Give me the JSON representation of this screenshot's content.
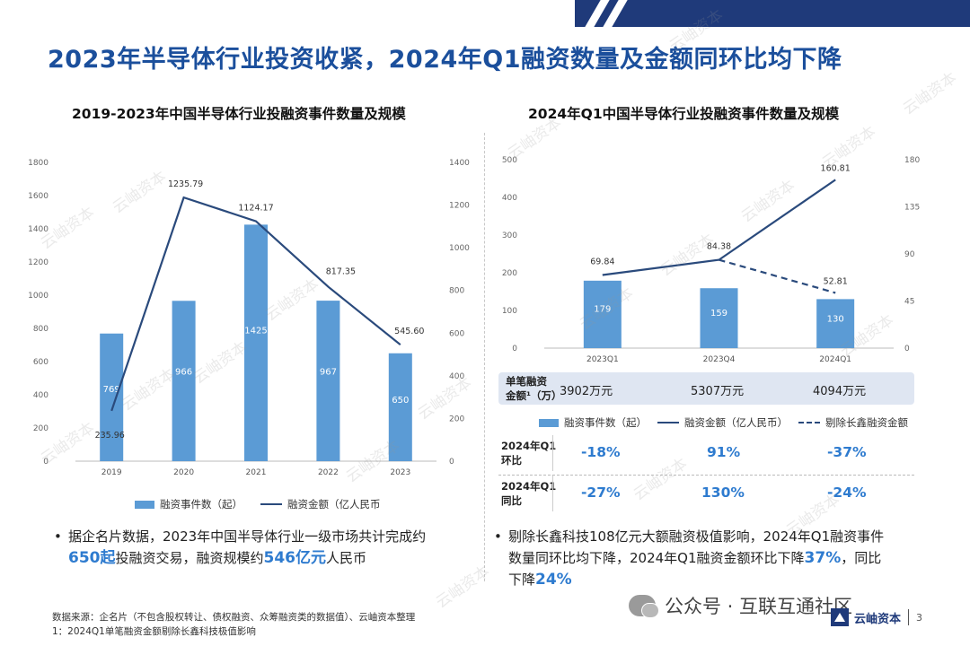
{
  "page_title": "2023年半导体行业投资收紧，2024年Q1融资数量及金额同环比均下降",
  "watermark": "云岫资本",
  "left_chart": {
    "title": "2019-2023年中国半导体行业投融资事件数量及规模",
    "legend": {
      "bar": "融资事件数（起）",
      "line": "融资金额（亿人民币"
    }
  },
  "right_chart": {
    "title": "2024年Q1中国半导体行业投融资事件数量及规模",
    "legend": {
      "bar": "融资事件数（起）",
      "line": "融资金额（亿人民币）",
      "dash": "剔除长鑫融资金额"
    }
  },
  "chart_data": [
    {
      "type": "bar+line",
      "title": "2019-2023年中国半导体行业投融资事件数量及规模",
      "categories": [
        "2019",
        "2020",
        "2021",
        "2022",
        "2023"
      ],
      "series": [
        {
          "name": "融资事件数（起）",
          "type": "bar",
          "axis": "left",
          "values": [
            769,
            966,
            1425,
            967,
            650
          ]
        },
        {
          "name": "融资金额（亿人民币",
          "type": "line",
          "axis": "right",
          "values": [
            235.96,
            1235.79,
            1124.17,
            817.35,
            545.6
          ],
          "labels": [
            "235.96",
            "1235.79",
            "1124.17",
            "817.35",
            "545.60"
          ]
        }
      ],
      "bar_labels": [
        "769",
        "966",
        "1425",
        "967",
        "650"
      ],
      "y_left": {
        "range": [
          0,
          1800
        ],
        "ticks": [
          "0",
          "200",
          "400",
          "600",
          "800",
          "1000",
          "1200",
          "1400",
          "1600",
          "1800"
        ]
      },
      "y_right": {
        "range": [
          0,
          1400
        ],
        "ticks": [
          "0",
          "200",
          "400",
          "600",
          "800",
          "1000",
          "1200",
          "1400"
        ]
      }
    },
    {
      "type": "bar+line",
      "title": "2024年Q1中国半导体行业投融资事件数量及规模",
      "categories": [
        "2023Q1",
        "2023Q4",
        "2024Q1"
      ],
      "series": [
        {
          "name": "融资事件数（起）",
          "type": "bar",
          "axis": "left",
          "values": [
            179,
            159,
            130
          ]
        },
        {
          "name": "融资金额（亿人民币）",
          "type": "line",
          "axis": "right",
          "values": [
            69.84,
            84.38,
            160.81
          ],
          "labels": [
            "69.84",
            "84.38",
            "160.81"
          ]
        },
        {
          "name": "剔除长鑫融资金额",
          "type": "dashed-line",
          "axis": "right",
          "values": [
            null,
            84.38,
            52.81
          ],
          "labels": [
            "",
            "",
            "52.81"
          ]
        }
      ],
      "bar_labels": [
        "179",
        "159",
        "130"
      ],
      "y_left": {
        "range": [
          0,
          500
        ],
        "ticks": [
          "0",
          "100",
          "200",
          "300",
          "400",
          "500"
        ]
      },
      "y_right": {
        "range": [
          0,
          180
        ],
        "ticks": [
          "0",
          "45",
          "90",
          "135",
          "180"
        ]
      }
    }
  ],
  "single_amount": {
    "label_line1": "单笔融资",
    "label_line2": "金额¹（万）",
    "values": [
      "3902万元",
      "5307万元",
      "4094万元"
    ]
  },
  "growth": {
    "qoq": {
      "label_line1": "2024年Q1",
      "label_line2": "环比",
      "values": [
        "-18%",
        "91%",
        "-37%"
      ]
    },
    "yoy": {
      "label_line1": "2024年Q1",
      "label_line2": "同比",
      "values": [
        "-27%",
        "130%",
        "-24%"
      ]
    }
  },
  "bullet_left": {
    "line1": "据企名片数据，2023年中国半导体行业一级市场共计完成约",
    "count": "650起",
    "mid": "投融资交易，融资规模约",
    "amount": "546亿元",
    "tail": "人民币"
  },
  "bullet_right": {
    "line1": "剔除长鑫科技108亿元大额融资极值影响，2024年Q1融资事件",
    "line2a": "数量同环比均下降，2024年Q1融资金额环比下降",
    "pct1": "37%",
    "line2b": "，同比",
    "line3a": "下降",
    "pct2": "24%"
  },
  "source": {
    "line1": "数据来源：企名片（不包含股权转让、债权融资、众筹融资类的数据值）、云岫资本整理",
    "line2": "1：2024Q1单笔融资金额剔除长鑫科技极值影响"
  },
  "footer": {
    "wechat": "公众号 · 互联互通社区",
    "brand": "云岫资本",
    "page": "3"
  }
}
